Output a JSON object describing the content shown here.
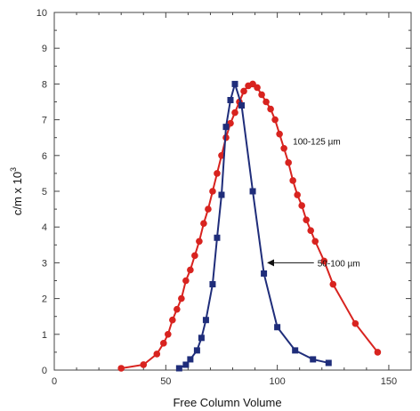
{
  "chart_data": {
    "type": "line",
    "xlabel": "Free Column Volume",
    "ylabel": "c/m x 10",
    "ylabel_exponent": "3",
    "xlim": [
      0,
      160
    ],
    "ylim": [
      0,
      10
    ],
    "x_ticks": [
      0,
      50,
      100,
      150
    ],
    "y_ticks": [
      0,
      1,
      2,
      3,
      4,
      5,
      6,
      7,
      8,
      9,
      10
    ],
    "grid": false,
    "series": [
      {
        "name": "100-125 µm",
        "color": "#d8231f",
        "marker": "circle",
        "points": [
          [
            30,
            0.05
          ],
          [
            40,
            0.15
          ],
          [
            46,
            0.45
          ],
          [
            49,
            0.75
          ],
          [
            51,
            1.0
          ],
          [
            53,
            1.4
          ],
          [
            55,
            1.7
          ],
          [
            57,
            2.0
          ],
          [
            59,
            2.5
          ],
          [
            61,
            2.8
          ],
          [
            63,
            3.2
          ],
          [
            65,
            3.6
          ],
          [
            67,
            4.1
          ],
          [
            69,
            4.5
          ],
          [
            71,
            5.0
          ],
          [
            73,
            5.5
          ],
          [
            75,
            6.0
          ],
          [
            77,
            6.5
          ],
          [
            79,
            6.9
          ],
          [
            81,
            7.2
          ],
          [
            83,
            7.5
          ],
          [
            85,
            7.8
          ],
          [
            87,
            7.95
          ],
          [
            89,
            8.0
          ],
          [
            91,
            7.9
          ],
          [
            93,
            7.7
          ],
          [
            95,
            7.5
          ],
          [
            97,
            7.3
          ],
          [
            99,
            7.0
          ],
          [
            101,
            6.6
          ],
          [
            103,
            6.2
          ],
          [
            105,
            5.8
          ],
          [
            107,
            5.3
          ],
          [
            109,
            4.9
          ],
          [
            111,
            4.6
          ],
          [
            113,
            4.2
          ],
          [
            115,
            3.9
          ],
          [
            117,
            3.6
          ],
          [
            121,
            3.05
          ],
          [
            125,
            2.4
          ],
          [
            135,
            1.3
          ],
          [
            145,
            0.5
          ]
        ]
      },
      {
        "name": "50-100 µm",
        "color": "#1f2d7a",
        "marker": "square",
        "points": [
          [
            56,
            0.05
          ],
          [
            59,
            0.15
          ],
          [
            61,
            0.3
          ],
          [
            64,
            0.55
          ],
          [
            66,
            0.9
          ],
          [
            68,
            1.4
          ],
          [
            71,
            2.4
          ],
          [
            73,
            3.7
          ],
          [
            75,
            4.9
          ],
          [
            77,
            6.8
          ],
          [
            79,
            7.55
          ],
          [
            81,
            8.0
          ],
          [
            84,
            7.4
          ],
          [
            89,
            5.0
          ],
          [
            94,
            2.7
          ],
          [
            100,
            1.2
          ],
          [
            108,
            0.55
          ],
          [
            116,
            0.3
          ],
          [
            123,
            0.2
          ]
        ]
      }
    ],
    "annotations": [
      {
        "text": "100-125 µm",
        "x": 107,
        "y": 6.4
      },
      {
        "text": "50-100 µm",
        "x": 118,
        "y": 3.0,
        "arrow_to": [
          95,
          3.0
        ]
      }
    ]
  }
}
